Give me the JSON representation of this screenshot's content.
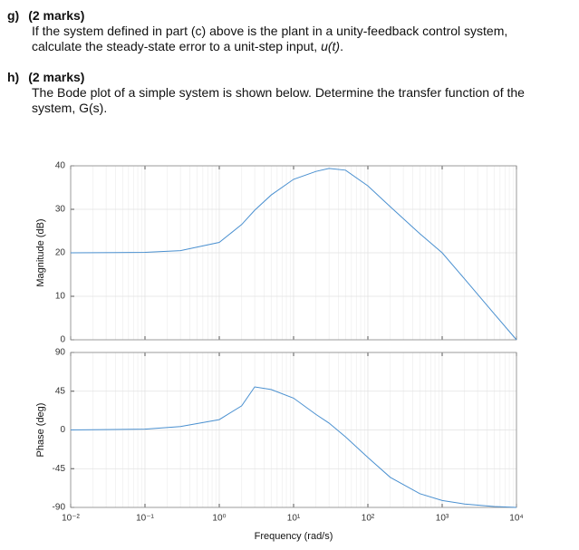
{
  "document": {
    "questions": [
      {
        "label": "g)",
        "marks": "(2 marks)",
        "text": [
          "If the system defined in part (c) above is the plant in a unity-feedback control system,",
          "calculate the steady-state error to a unit-step input, ",
          "u(t)",
          "."
        ]
      },
      {
        "label": "h)",
        "marks": "(2 marks)",
        "text": [
          "The Bode plot of a simple system is shown below. Determine the transfer function of the",
          "system, G(s)."
        ]
      }
    ]
  },
  "chart_data": [
    {
      "type": "line",
      "ylabel": "Magnitude (dB)",
      "xscale": "log",
      "grid": true,
      "x": [
        0.01,
        0.1,
        0.3,
        1,
        2,
        3,
        5,
        10,
        20,
        30,
        50,
        100,
        200,
        500,
        1000,
        2000,
        5000,
        10000
      ],
      "series": [
        {
          "color": "#4a90d0",
          "values": [
            20,
            20.1,
            20.5,
            22.4,
            26.5,
            29.8,
            33.3,
            36.9,
            38.7,
            39.4,
            39,
            35.4,
            30.6,
            24.4,
            20,
            14,
            6,
            0
          ]
        }
      ],
      "xlim": [
        0.01,
        10000
      ],
      "xticks": [
        0.01,
        0.1,
        1,
        10,
        100,
        1000,
        10000
      ],
      "ylim": [
        0,
        40
      ],
      "yticks": [
        0,
        10,
        20,
        30,
        40
      ]
    },
    {
      "type": "line",
      "ylabel": "Phase (deg)",
      "xlabel": "Frequency (rad/s)",
      "xscale": "log",
      "grid": true,
      "x": [
        0.01,
        0.1,
        0.3,
        1,
        2,
        3,
        5,
        10,
        20,
        30,
        50,
        100,
        200,
        500,
        1000,
        2000,
        5000,
        10000
      ],
      "series": [
        {
          "color": "#4a90d0",
          "values": [
            0,
            1,
            4,
            12,
            28,
            50,
            47,
            37,
            18,
            8,
            -8,
            -32,
            -55,
            -74,
            -82,
            -86,
            -89,
            -90
          ]
        }
      ],
      "xlim": [
        0.01,
        10000
      ],
      "xticks": [
        {
          "value": 0.01,
          "label": "10⁻²"
        },
        {
          "value": 0.1,
          "label": "10⁻¹"
        },
        {
          "value": 1,
          "label": "10⁰"
        },
        {
          "value": 10,
          "label": "10¹"
        },
        {
          "value": 100,
          "label": "10²"
        },
        {
          "value": 1000,
          "label": "10³"
        },
        {
          "value": 10000,
          "label": "10⁴"
        }
      ],
      "ylim": [
        -90,
        90
      ],
      "yticks": [
        -90,
        -45,
        0,
        45,
        90
      ]
    }
  ]
}
